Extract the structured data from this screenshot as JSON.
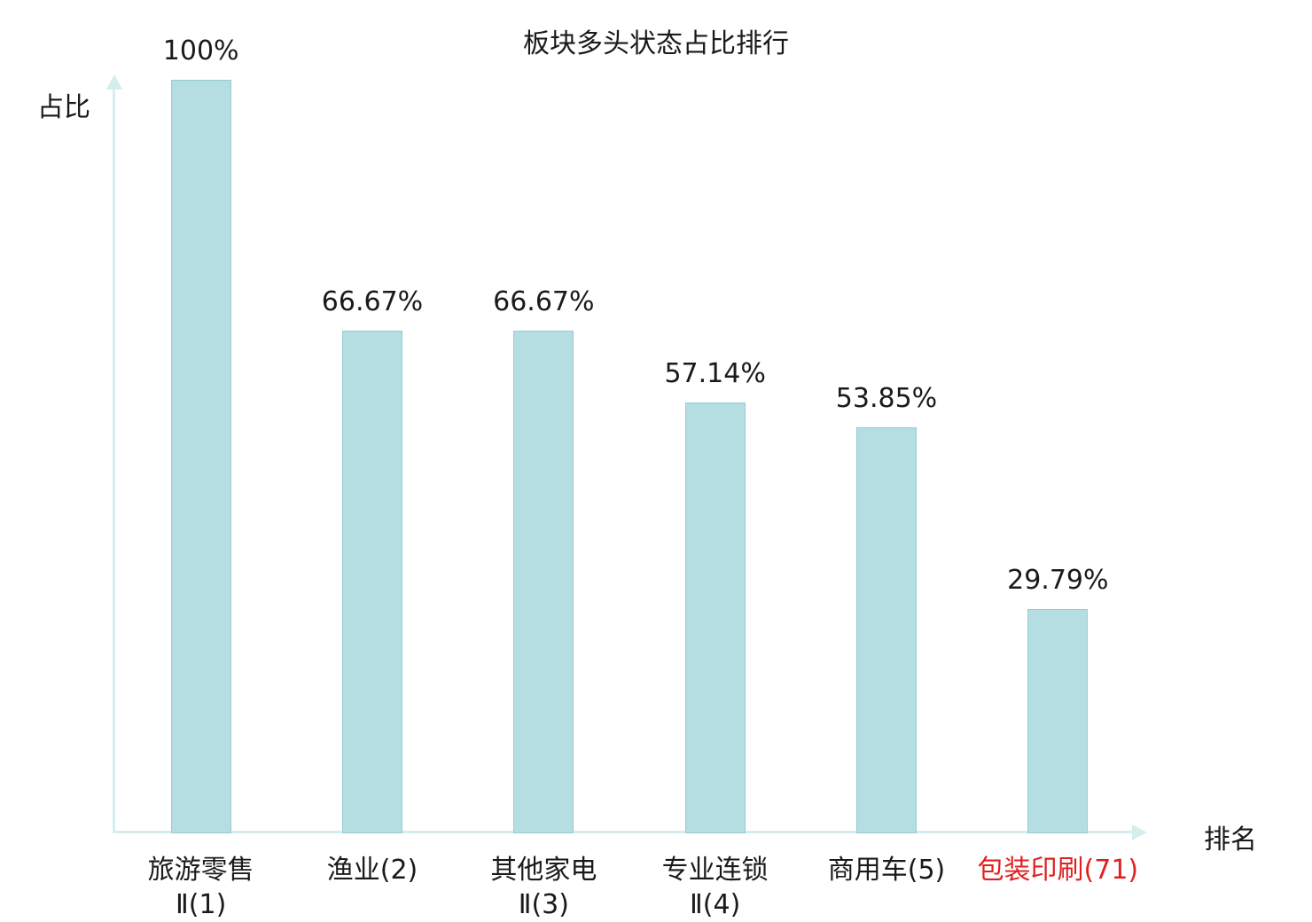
{
  "chart_data": {
    "type": "bar",
    "title": "板块多头状态占比排行",
    "xlabel": "排名",
    "ylabel": "占比",
    "ylim": [
      0,
      100
    ],
    "grid": false,
    "legend": "none",
    "categories": [
      "旅游零售\nⅡ(1)",
      "渔业(2)",
      "其他家电\nⅡ(3)",
      "专业连锁\nⅡ(4)",
      "商用车(5)",
      "包装印刷(71)"
    ],
    "values": [
      100,
      66.67,
      66.67,
      57.14,
      53.85,
      29.79
    ],
    "value_labels": [
      "100%",
      "66.67%",
      "66.67%",
      "57.14%",
      "53.85%",
      "29.79%"
    ],
    "highlighted_category_index": 5,
    "colors": {
      "bar_fill": "#b5dee2",
      "bar_border": "#96ccd3",
      "axis": "#d6edee",
      "text": "#1a1a1a",
      "highlight": "#e02020"
    }
  }
}
